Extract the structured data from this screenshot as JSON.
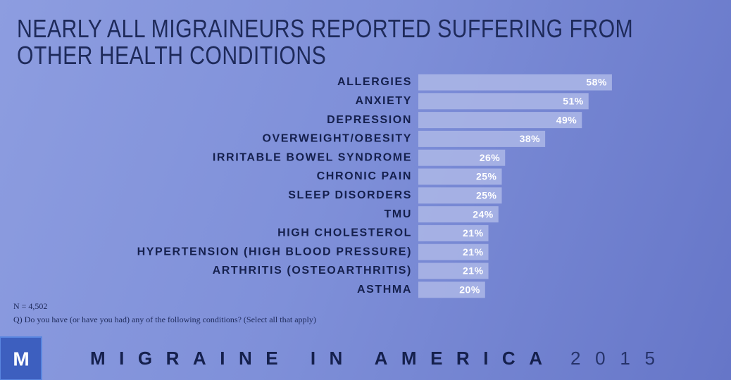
{
  "chart_data": {
    "type": "hbar",
    "title": "NEARLY ALL MIGRAINEURS REPORTED SUFFERING FROM OTHER HEALTH CONDITIONS",
    "categories": [
      "ALLERGIES",
      "ANXIETY",
      "DEPRESSION",
      "OVERWEIGHT/OBESITY",
      "IRRITABLE BOWEL SYNDROME",
      "CHRONIC PAIN",
      "SLEEP DISORDERS",
      "TMU",
      "HIGH CHOLESTEROL",
      "HYPERTENSION (HIGH BLOOD PRESSURE)",
      "ARTHRITIS (OSTEOARTHRITIS)",
      "ASTHMA"
    ],
    "values": [
      58,
      51,
      49,
      38,
      26,
      25,
      25,
      24,
      21,
      21,
      21,
      20
    ],
    "value_labels": [
      "58%",
      "51%",
      "49%",
      "38%",
      "26%",
      "25%",
      "25%",
      "24%",
      "21%",
      "21%",
      "21%",
      "20%"
    ],
    "color": "#aab5e6",
    "notes": [
      "N = 4,502",
      "Q) Do you have (or have you had) any of the following conditions? (Select all that apply)"
    ]
  },
  "footer": {
    "logo": "M",
    "brand": "MIGRAINE IN AMERICA",
    "year": "2015"
  }
}
